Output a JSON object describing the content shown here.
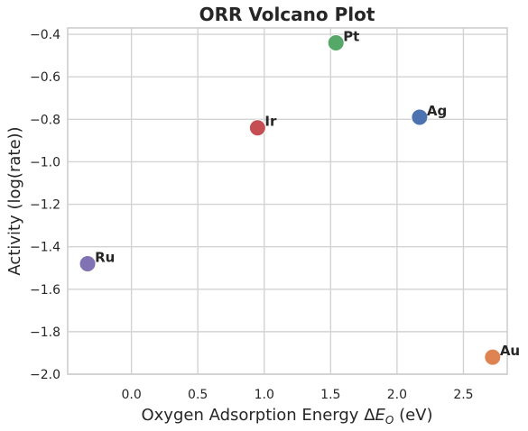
{
  "chart_data": {
    "type": "scatter",
    "title": "ORR Volcano Plot",
    "xlabel": "Oxygen Adsorption Energy",
    "xlabel_symbol": "ΔE",
    "xlabel_subscript": "O",
    "xlabel_unit": "(eV)",
    "ylabel": "Activity (log(rate))",
    "xlim": [
      -0.48,
      2.83
    ],
    "ylim": [
      -2.0,
      -0.37
    ],
    "xticks": [
      0.0,
      0.5,
      1.0,
      1.5,
      2.0,
      2.5
    ],
    "xtick_labels": [
      "0.0",
      "0.5",
      "1.0",
      "1.5",
      "2.0",
      "2.5"
    ],
    "yticks": [
      -2.0,
      -1.8,
      -1.6,
      -1.4,
      -1.2,
      -1.0,
      -0.8,
      -0.6,
      -0.4
    ],
    "ytick_labels": [
      "−2.0",
      "−1.8",
      "−1.6",
      "−1.4",
      "−1.2",
      "−1.0",
      "−0.8",
      "−0.6",
      "−0.4"
    ],
    "grid": true,
    "points": [
      {
        "label": "Ag",
        "x": 2.17,
        "y": -0.79,
        "color": "#4c72b0"
      },
      {
        "label": "Au",
        "x": 2.72,
        "y": -1.92,
        "color": "#dd8452"
      },
      {
        "label": "Pt",
        "x": 1.54,
        "y": -0.44,
        "color": "#55a868"
      },
      {
        "label": "Ir",
        "x": 0.95,
        "y": -0.84,
        "color": "#c44e52"
      },
      {
        "label": "Ru",
        "x": -0.33,
        "y": -1.48,
        "color": "#8172b3"
      }
    ]
  }
}
